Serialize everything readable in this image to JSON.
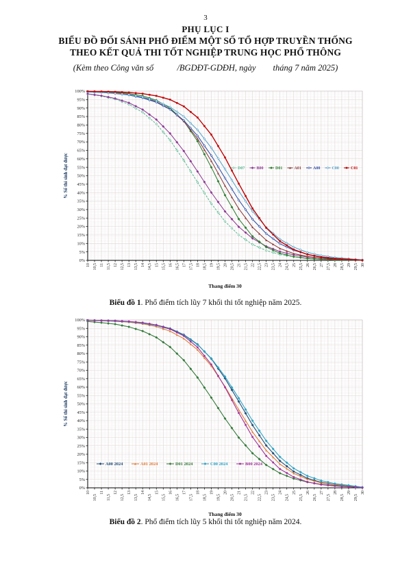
{
  "page": {
    "number": "3"
  },
  "header": {
    "appendix_title": "PHỤ LỤC I",
    "title_line1": "BIỂU ĐỒ ĐỐI SÁNH PHỔ ĐIỂM MỘT SỐ TỔ HỢP TRUYỀN THỐNG",
    "title_line2": "THEO KẾT QUẢ THI TỐT NGHIỆP TRUNG HỌC PHỔ THÔNG",
    "subtitle": "(Kèm theo Công văn số           /BGDĐT-GDĐH, ngày        tháng 7 năm 2025)"
  },
  "captions": {
    "chart1_label": "Biểu đồ 1",
    "chart1_text": ". Phổ điểm tích lũy 7 khối thi tốt nghiệp năm 2025.",
    "chart2_label": "Biểu đồ 2",
    "chart2_text": ". Phổ điểm tích lũy 5 khối thi tốt nghiệp năm 2024."
  },
  "chart_data": [
    {
      "type": "line",
      "title": "",
      "xlabel": "Thang điểm 30",
      "ylabel": "% Số thí sinh đạt được",
      "xlim": [
        10,
        30
      ],
      "ylim": [
        0,
        100
      ],
      "x_tick_step": 0.5,
      "y_tick_step": 5,
      "y_tick_suffix": "%",
      "decimal_separator": ",",
      "grid": true,
      "legend_position": "inside-middle-right",
      "x": [
        10,
        11,
        12,
        13,
        14,
        15,
        16,
        17,
        18,
        19,
        20,
        21,
        22,
        23,
        24,
        25,
        26,
        27,
        28,
        29,
        30
      ],
      "series": [
        {
          "name": "D07",
          "color": "#57b894",
          "dash": true,
          "marker": "diamond-open",
          "width": 1.0,
          "values": [
            98.3,
            97.1,
            95.3,
            92.2,
            87.5,
            80.6,
            71.0,
            59.1,
            46.1,
            33.5,
            23.0,
            15.0,
            9.4,
            5.8,
            3.5,
            2.1,
            1.3,
            0.7,
            0.4,
            0.2,
            0.1
          ]
        },
        {
          "name": "B00",
          "color": "#8e3a96",
          "dash": false,
          "marker": "diamond-filled",
          "width": 1.05,
          "values": [
            98.4,
            97.3,
            95.7,
            93.1,
            89.1,
            83.2,
            75.0,
            64.6,
            52.5,
            40.1,
            28.9,
            19.8,
            13.0,
            8.3,
            5.2,
            3.2,
            2.0,
            1.2,
            0.7,
            0.4,
            0.1
          ]
        },
        {
          "name": "D01",
          "color": "#2e7d32",
          "dash": false,
          "marker": "diamond-filled",
          "width": 1.05,
          "values": [
            99.8,
            99.6,
            99.2,
            98.5,
            97.2,
            94.6,
            90.0,
            82.3,
            70.4,
            55.0,
            38.5,
            24.4,
            14.2,
            7.8,
            4.2,
            2.2,
            1.1,
            0.6,
            0.3,
            0.2,
            0.1
          ]
        },
        {
          "name": "A01",
          "color": "#8b3a3a",
          "dash": false,
          "marker": "triangle-filled",
          "width": 1.05,
          "values": [
            99.6,
            99.4,
            98.9,
            98.0,
            96.4,
            93.7,
            89.3,
            82.2,
            71.9,
            58.7,
            44.1,
            30.5,
            19.6,
            11.9,
            7.0,
            4.0,
            2.3,
            1.3,
            0.7,
            0.4,
            0.1
          ]
        },
        {
          "name": "A00",
          "color": "#2b4ba6",
          "dash": false,
          "marker": "diamond-open",
          "width": 1.05,
          "values": [
            99.5,
            99.2,
            98.6,
            97.7,
            96.0,
            93.4,
            89.2,
            82.7,
            73.6,
            61.9,
            48.6,
            35.6,
            24.3,
            15.8,
            9.8,
            6.0,
            3.6,
            2.1,
            1.2,
            0.7,
            0.2
          ]
        },
        {
          "name": "C00",
          "color": "#4f9fc9",
          "dash": false,
          "marker": "diamond-open",
          "width": 1.0,
          "values": [
            99.6,
            99.3,
            98.7,
            97.9,
            96.5,
            94.2,
            90.6,
            85.0,
            77.1,
            66.5,
            53.9,
            40.9,
            29.0,
            19.5,
            12.5,
            7.8,
            4.7,
            2.9,
            1.7,
            1.0,
            0.3
          ]
        },
        {
          "name": "C01",
          "color": "#c00000",
          "dash": false,
          "marker": "square-filled",
          "width": 1.4,
          "values": [
            99.9,
            99.8,
            99.6,
            99.2,
            98.5,
            97.2,
            95.0,
            91.0,
            84.4,
            74.3,
            60.8,
            45.3,
            30.7,
            19.2,
            11.3,
            6.4,
            3.5,
            1.9,
            1.0,
            0.6,
            0.1
          ]
        }
      ]
    },
    {
      "type": "line",
      "title": "",
      "xlabel": "Thang điểm 30",
      "ylabel": "% Số thí sinh đạt được",
      "xlim": [
        10,
        30
      ],
      "ylim": [
        0,
        100
      ],
      "x_tick_step": 0.5,
      "y_tick_step": 5,
      "y_tick_suffix": "%",
      "decimal_separator": ",",
      "grid": true,
      "legend_position": "inside-bottom-left",
      "x": [
        10,
        11,
        12,
        13,
        14,
        15,
        16,
        17,
        18,
        19,
        20,
        21,
        22,
        23,
        24,
        25,
        26,
        27,
        28,
        29,
        30
      ],
      "series": [
        {
          "name": "A00 2024",
          "color": "#1f4e79",
          "dash": false,
          "marker": "diamond-filled",
          "width": 1.1,
          "values": [
            99.8,
            99.7,
            99.5,
            99.0,
            98.3,
            97.0,
            94.9,
            91.2,
            85.5,
            76.9,
            65.2,
            51.4,
            37.4,
            25.2,
            16.0,
            9.7,
            5.7,
            3.3,
            1.9,
            1.1,
            0.2
          ]
        },
        {
          "name": "A01 2024",
          "color": "#e07b39",
          "dash": false,
          "marker": "triangle-filled",
          "width": 1.1,
          "values": [
            99.7,
            99.6,
            99.2,
            98.7,
            97.7,
            96.1,
            93.3,
            88.9,
            82.2,
            72.6,
            60.3,
            46.5,
            33.3,
            22.3,
            14.1,
            8.6,
            5.1,
            3.0,
            1.8,
            1.0,
            0.2
          ]
        },
        {
          "name": "D01 2024",
          "color": "#337a3b",
          "dash": false,
          "marker": "diamond-filled",
          "width": 1.1,
          "values": [
            99.1,
            98.4,
            97.5,
            95.9,
            93.4,
            89.6,
            83.9,
            76.0,
            65.7,
            53.7,
            41.3,
            29.9,
            20.6,
            13.6,
            8.7,
            5.5,
            3.4,
            2.1,
            1.3,
            0.8,
            0.2
          ]
        },
        {
          "name": "C00 2024",
          "color": "#2ba3c4",
          "dash": false,
          "marker": "diamond-filled",
          "width": 1.1,
          "values": [
            99.8,
            99.6,
            99.3,
            98.9,
            98.1,
            96.7,
            94.5,
            90.9,
            85.3,
            77.1,
            66.3,
            53.4,
            40.0,
            28.0,
            18.4,
            11.6,
            7.1,
            4.3,
            2.5,
            1.5,
            0.4
          ]
        },
        {
          "name": "B00 2024",
          "color": "#a0309a",
          "dash": false,
          "marker": "square-filled",
          "width": 1.1,
          "values": [
            99.9,
            99.7,
            99.5,
            99.1,
            98.4,
            97.0,
            94.6,
            90.5,
            83.7,
            73.5,
            59.9,
            44.6,
            30.3,
            19.0,
            11.2,
            6.4,
            3.5,
            1.9,
            1.1,
            0.6,
            0.1
          ]
        }
      ]
    }
  ]
}
